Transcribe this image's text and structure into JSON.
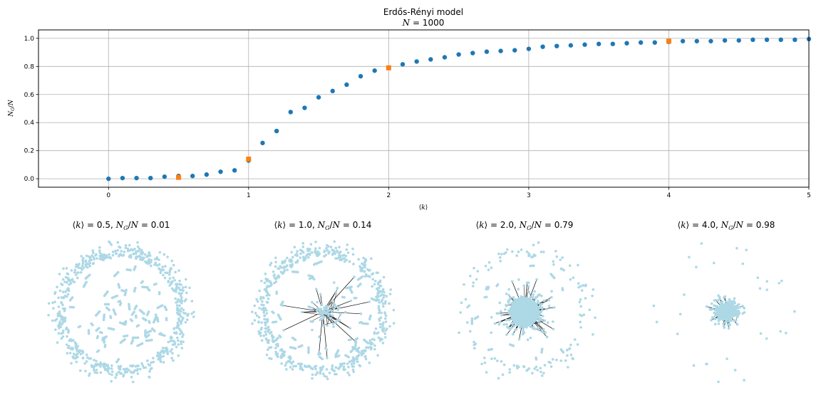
{
  "chart_data": [
    {
      "type": "scatter",
      "title": "Erdős-Rényi model",
      "subtitle": "N = 1000",
      "xlabel": "⟨k⟩",
      "ylabel": "N_G / N",
      "xlim": [
        -0.5,
        5
      ],
      "ylim": [
        -0.06,
        1.06
      ],
      "xticks": [
        "0",
        "1",
        "2",
        "3",
        "4",
        "5"
      ],
      "yticks": [
        "0.0",
        "0.2",
        "0.4",
        "0.6",
        "0.8",
        "1.0"
      ],
      "grid": true,
      "series": [
        {
          "color": "#1f77b4",
          "marker": "circle",
          "x": [
            0.0,
            0.1,
            0.2,
            0.3,
            0.4,
            0.5,
            0.6,
            0.7,
            0.8,
            0.9,
            1.0,
            1.1,
            1.2,
            1.3,
            1.4,
            1.5,
            1.6,
            1.7,
            1.8,
            1.9,
            2.0,
            2.1,
            2.2,
            2.3,
            2.4,
            2.5,
            2.6,
            2.7,
            2.8,
            2.9,
            3.0,
            3.1,
            3.2,
            3.3,
            3.4,
            3.5,
            3.6,
            3.7,
            3.8,
            3.9,
            4.0,
            4.1,
            4.2,
            4.3,
            4.4,
            4.5,
            4.6,
            4.7,
            4.8,
            4.9,
            5.0
          ],
          "y": [
            0.0,
            0.005,
            0.005,
            0.005,
            0.015,
            0.02,
            0.02,
            0.03,
            0.05,
            0.06,
            0.13,
            0.255,
            0.34,
            0.475,
            0.505,
            0.58,
            0.625,
            0.67,
            0.73,
            0.77,
            0.79,
            0.815,
            0.835,
            0.85,
            0.865,
            0.885,
            0.895,
            0.905,
            0.91,
            0.915,
            0.925,
            0.94,
            0.945,
            0.95,
            0.955,
            0.96,
            0.96,
            0.965,
            0.97,
            0.97,
            0.975,
            0.98,
            0.98,
            0.98,
            0.985,
            0.985,
            0.99,
            0.99,
            0.99,
            0.99,
            0.995
          ]
        },
        {
          "color": "#ff7f0e",
          "marker": "square",
          "x": [
            0.5,
            1.0,
            2.0,
            4.0
          ],
          "y": [
            0.01,
            0.14,
            0.79,
            0.98
          ]
        }
      ]
    },
    {
      "type": "network",
      "panels": [
        {
          "title": "⟨k⟩ = 0.5, N_G/N = 0.01",
          "k": 0.5,
          "giant_fraction": 0.01
        },
        {
          "title": "⟨k⟩ = 1.0, N_G/N = 0.14",
          "k": 1.0,
          "giant_fraction": 0.14
        },
        {
          "title": "⟨k⟩ = 2.0, N_G/N = 0.79",
          "k": 2.0,
          "giant_fraction": 0.79
        },
        {
          "title": "⟨k⟩ = 4.0, N_G/N = 0.98",
          "k": 4.0,
          "giant_fraction": 0.98
        }
      ],
      "node_color": "#add8e6",
      "edge_color": "#000000"
    }
  ]
}
